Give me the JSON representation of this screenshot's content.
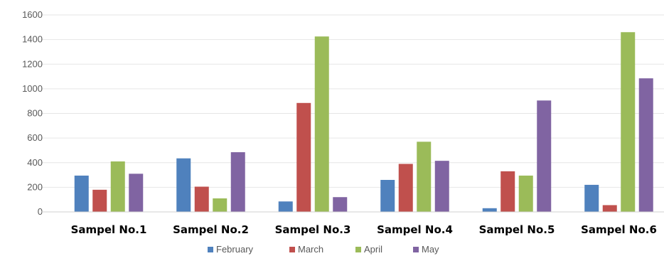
{
  "chart_data": {
    "type": "bar",
    "categories": [
      "Sampel No.1",
      "Sampel No.2",
      "Sampel No.3",
      "Sampel No.4",
      "Sampel No.5",
      "Sampel No.6"
    ],
    "series": [
      {
        "name": "February",
        "color": "#4f81bd",
        "values": [
          295,
          435,
          85,
          260,
          30,
          220
        ]
      },
      {
        "name": "March",
        "color": "#c0504d",
        "values": [
          180,
          205,
          885,
          390,
          330,
          55
        ]
      },
      {
        "name": "April",
        "color": "#9bbb59",
        "values": [
          410,
          110,
          1425,
          570,
          295,
          1460
        ]
      },
      {
        "name": "May",
        "color": "#8064a2",
        "values": [
          310,
          485,
          120,
          415,
          905,
          1085
        ]
      }
    ],
    "ylim": [
      0,
      1600
    ],
    "yticks": [
      0,
      200,
      400,
      600,
      800,
      1000,
      1200,
      1400,
      1600
    ],
    "grid": true,
    "legend_position": "bottom"
  }
}
